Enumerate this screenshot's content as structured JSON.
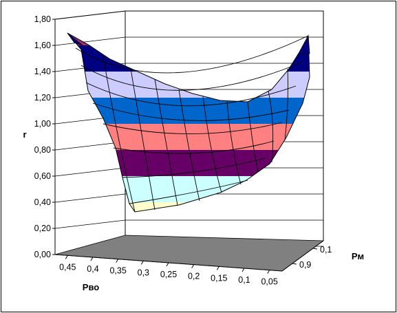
{
  "chart_data": {
    "type": "surface3d",
    "title": "",
    "zlabel": "r",
    "xlabel": "Pво",
    "ylabel": "Pм",
    "zlim": [
      0,
      1.8
    ],
    "z_ticks": [
      "0,00",
      "0,20",
      "0,40",
      "0,60",
      "0,80",
      "1,00",
      "1,20",
      "1,40",
      "1,60",
      "1,80"
    ],
    "x_ticks": [
      "0,45",
      "0,4",
      "0,35",
      "0,3",
      "0,25",
      "0,2",
      "0,15",
      "0,1",
      "0,05"
    ],
    "y_ticks": [
      "0,9",
      "0,1"
    ],
    "band_colors": [
      "#993366",
      "#FFFFCC",
      "#CCFFFF",
      "#660066",
      "#FF8080",
      "#0066CC",
      "#CCCCFF",
      "#000080",
      "#993366"
    ],
    "floor_color": "#808080",
    "grid": true
  }
}
